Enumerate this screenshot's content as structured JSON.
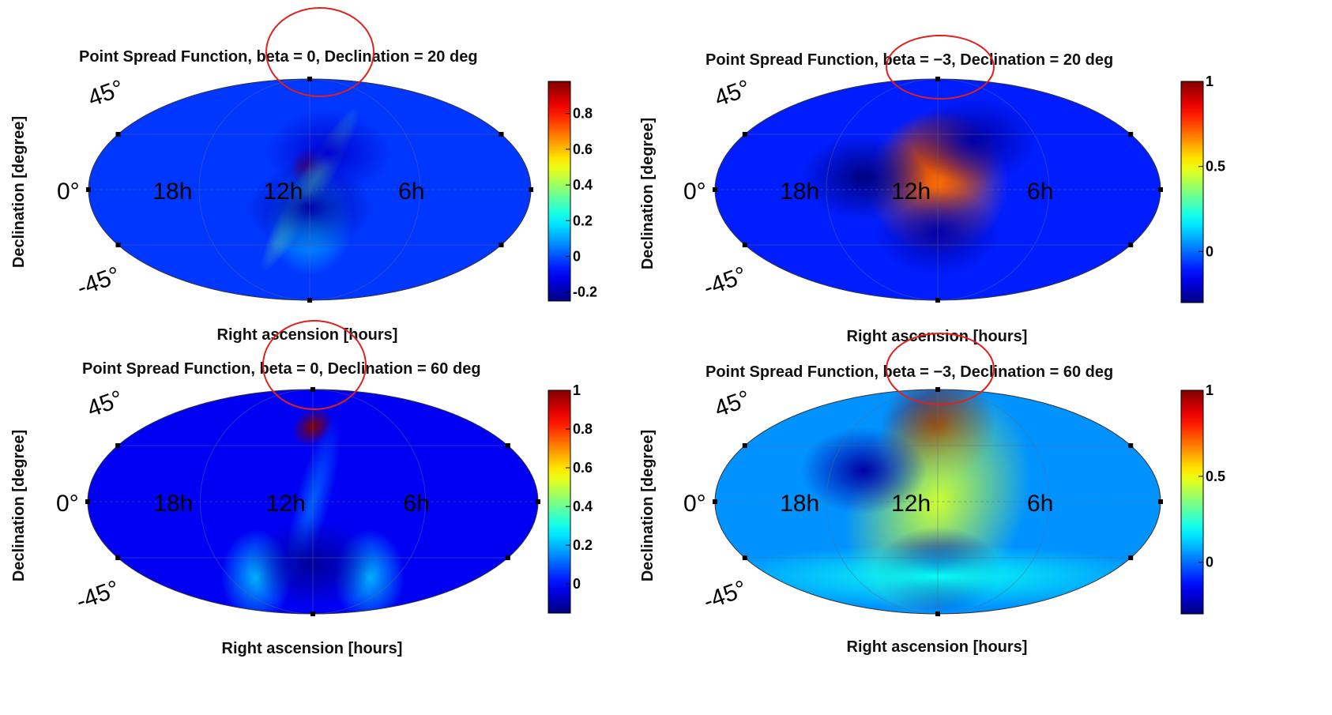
{
  "figure": {
    "xlabel": "Right ascension [hours]",
    "ylabel": "Declination [degree]",
    "ra_tick_labels": [
      "18h",
      "12h",
      "6h"
    ],
    "dec_tick_labels": [
      "45°",
      "0°",
      "-45°"
    ],
    "highlight_color": "#e0201c",
    "colormap": "jet",
    "background": "#ffffff"
  },
  "chart_data": [
    {
      "type": "heatmap",
      "projection": "mollweide",
      "title": "Point Spread Function, beta = 0, Declination = 20 deg",
      "xlabel": "Right ascension [hours]",
      "ylabel": "Declination [degree]",
      "x_tick_labels": [
        "18h",
        "12h",
        "6h"
      ],
      "y_tick_labels": [
        "45°",
        "0°",
        "-45°"
      ],
      "colorbar": {
        "min": -0.25,
        "max": 0.98,
        "ticks": [
          -0.2,
          0,
          0.2,
          0.4,
          0.6,
          0.8
        ],
        "tick_labels": [
          "-0.2",
          "0",
          "0.2",
          "0.4",
          "0.6",
          "0.8"
        ]
      },
      "background_value": -0.03,
      "features": [
        {
          "kind": "peak",
          "ra_hours": 12,
          "dec_deg": 20,
          "value": 0.98
        },
        {
          "kind": "elongated ridge",
          "orientation": "north-east to south-west through peak",
          "value": 0.35
        },
        {
          "kind": "ring lobe",
          "ra_hours": 12,
          "dec_deg": -25,
          "value": 0.15
        },
        {
          "kind": "negative lobe",
          "ra_hours": 11,
          "dec_deg": 30,
          "value": -0.15
        },
        {
          "kind": "negative lobe",
          "ra_hours": 12,
          "dec_deg": -15,
          "value": -0.2
        }
      ],
      "highlight": "ellipse around title text near ', beta = 0,'"
    },
    {
      "type": "heatmap",
      "projection": "mollweide",
      "title": "Point Spread Function, beta = −3, Declination = 20 deg",
      "xlabel": "Right ascension [hours]",
      "ylabel": "Declination [degree]",
      "x_tick_labels": [
        "18h",
        "12h",
        "6h"
      ],
      "y_tick_labels": [
        "45°",
        "0°",
        "-45°"
      ],
      "colorbar": {
        "min": -0.3,
        "max": 1.0,
        "ticks": [
          0,
          0.5,
          1
        ],
        "tick_labels": [
          "0",
          "0.5",
          "1"
        ]
      },
      "background_value": -0.1,
      "features": [
        {
          "kind": "peak",
          "ra_hours": 12,
          "dec_deg": 20,
          "value": 1.0
        },
        {
          "kind": "broad lobe",
          "ra_hours": 12,
          "dec_deg": 5,
          "value": 0.7
        },
        {
          "kind": "negative lobe",
          "ra_hours": 16,
          "dec_deg": 10,
          "value": -0.3
        },
        {
          "kind": "negative lobe",
          "ra_hours": 10,
          "dec_deg": 40,
          "value": -0.25
        },
        {
          "kind": "negative lobe",
          "ra_hours": 12,
          "dec_deg": -35,
          "value": -0.25
        }
      ],
      "highlight": "ellipse around title text near ', beta = −3,'"
    },
    {
      "type": "heatmap",
      "projection": "mollweide",
      "title": "Point Spread Function, beta = 0, Declination = 60 deg",
      "xlabel": "Right ascension [hours]",
      "ylabel": "Declination [degree]",
      "x_tick_labels": [
        "18h",
        "12h",
        "6h"
      ],
      "y_tick_labels": [
        "45°",
        "0°",
        "-45°"
      ],
      "colorbar": {
        "min": -0.15,
        "max": 1.0,
        "ticks": [
          0,
          0.2,
          0.4,
          0.6,
          0.8,
          1
        ],
        "tick_labels": [
          "0",
          "0.2",
          "0.4",
          "0.6",
          "0.8",
          "1"
        ]
      },
      "background_value": -0.02,
      "features": [
        {
          "kind": "peak",
          "ra_hours": 12,
          "dec_deg": 60,
          "value": 1.0
        },
        {
          "kind": "ridge",
          "orientation": "running south from peak",
          "value": 0.1
        },
        {
          "kind": "side lobes",
          "ra_hours": [
            15,
            9
          ],
          "dec_deg": -60,
          "value": 0.2
        },
        {
          "kind": "negative lobe",
          "ra_hours": 12,
          "dec_deg": -50,
          "value": -0.12
        }
      ],
      "highlight": "ellipse around title text near ', beta = 0,'"
    },
    {
      "type": "heatmap",
      "projection": "mollweide",
      "title": "Point Spread Function, beta = −3, Declination = 60 deg",
      "xlabel": "Right ascension [hours]",
      "ylabel": "Declination [degree]",
      "x_tick_labels": [
        "18h",
        "12h",
        "6h"
      ],
      "y_tick_labels": [
        "45°",
        "0°",
        "-45°"
      ],
      "colorbar": {
        "min": -0.3,
        "max": 1.0,
        "ticks": [
          0,
          0.5,
          1
        ],
        "tick_labels": [
          "0",
          "0.5",
          "1"
        ]
      },
      "background_value": 0.05,
      "features": [
        {
          "kind": "peak",
          "ra_hours": 12,
          "dec_deg": 60,
          "value": 1.0
        },
        {
          "kind": "broad tail",
          "orientation": "running south-west from peak",
          "value": 0.45
        },
        {
          "kind": "negative lobe",
          "ra_hours": 16,
          "dec_deg": 25,
          "value": -0.25
        },
        {
          "kind": "negative lobe",
          "ra_hours": 12,
          "dec_deg": -55,
          "value": -0.25
        },
        {
          "kind": "positive rim",
          "dec_deg": -60,
          "value": 0.2
        }
      ],
      "highlight": "ellipse around title text near ', beta = −3,'"
    }
  ]
}
